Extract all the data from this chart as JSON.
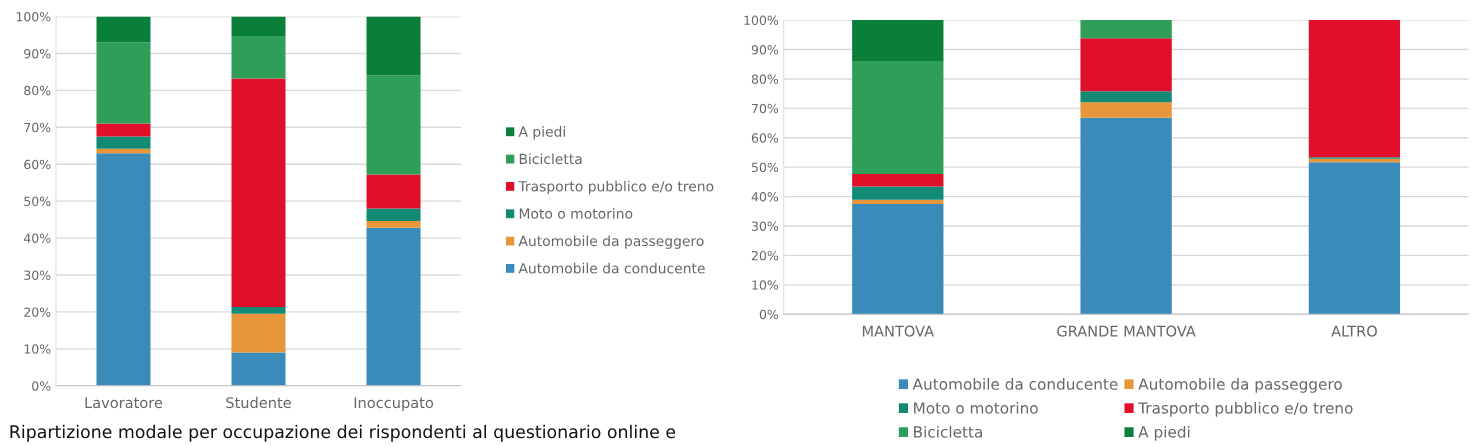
{
  "chart_data": [
    {
      "type": "bar",
      "stacked": true,
      "categories": [
        "Lavoratore",
        "Studente",
        "Inoccupato"
      ],
      "series": [
        {
          "name": "Automobile da conducente",
          "color": "#3a8bb9",
          "values": [
            63,
            9,
            42.8
          ]
        },
        {
          "name": "Automobile da passeggero",
          "color": "#e8963a",
          "values": [
            1.2,
            10.5,
            1.8
          ]
        },
        {
          "name": "Moto o motorino",
          "color": "#138a76",
          "values": [
            3.3,
            1.8,
            3.4
          ]
        },
        {
          "name": "Trasporto pubblico e/o treno",
          "color": "#e0102a",
          "values": [
            3.5,
            61.9,
            9.2
          ]
        },
        {
          "name": "Bicicletta",
          "color": "#2e9e58",
          "values": [
            22,
            11.5,
            26.8
          ]
        },
        {
          "name": "A piedi",
          "color": "#0a7f3a",
          "values": [
            7,
            5.3,
            16
          ]
        }
      ],
      "ylim": [
        0,
        100
      ],
      "yticks": [
        {
          "value": 0,
          "label": "0%"
        },
        {
          "value": 10,
          "label": "10%"
        },
        {
          "value": 20,
          "label": "20%"
        },
        {
          "value": 30,
          "label": "30%"
        },
        {
          "value": 40,
          "label": "40%"
        },
        {
          "value": 50,
          "label": "50%"
        },
        {
          "value": 60,
          "label": "60%"
        },
        {
          "value": 70,
          "label": "70%"
        },
        {
          "value": 80,
          "label": "80%"
        },
        {
          "value": 90,
          "label": "90%"
        },
        {
          "value": 100,
          "label": "100%"
        }
      ],
      "grid": "y",
      "legend": "right",
      "annotations": [
        "Ripartizione modale per occupazione dei rispondenti al questionario online e"
      ]
    },
    {
      "type": "bar",
      "stacked": true,
      "categories": [
        "MANTOVA",
        "GRANDE MANTOVA",
        "ALTRO"
      ],
      "series": [
        {
          "name": "Automobile da conducente",
          "color": "#3a8bb9",
          "values": [
            37.5,
            66.8,
            51.7
          ]
        },
        {
          "name": "Automobile da passeggero",
          "color": "#e8963a",
          "values": [
            1.4,
            5.3,
            1.2
          ]
        },
        {
          "name": "Moto o motorino",
          "color": "#138a76",
          "values": [
            4.5,
            3.7,
            0.5
          ]
        },
        {
          "name": "Trasporto pubblico e/o treno",
          "color": "#e0102a",
          "values": [
            4.3,
            18,
            46.6
          ]
        },
        {
          "name": "Bicicletta",
          "color": "#2e9e58",
          "values": [
            38.4,
            6.2,
            0
          ]
        },
        {
          "name": "A piedi",
          "color": "#0a7f3a",
          "values": [
            13.9,
            0,
            0
          ]
        }
      ],
      "ylim": [
        0,
        100
      ],
      "yticks": [
        {
          "value": 0,
          "label": "0%"
        },
        {
          "value": 10,
          "label": "10%"
        },
        {
          "value": 20,
          "label": "20%"
        },
        {
          "value": 30,
          "label": "30%"
        },
        {
          "value": 40,
          "label": "40%"
        },
        {
          "value": 50,
          "label": "50%"
        },
        {
          "value": 60,
          "label": "60%"
        },
        {
          "value": 70,
          "label": "70%"
        },
        {
          "value": 80,
          "label": "80%"
        },
        {
          "value": 90,
          "label": "90%"
        },
        {
          "value": 100,
          "label": "100%"
        }
      ],
      "grid": "y",
      "legend": "bottom"
    }
  ]
}
